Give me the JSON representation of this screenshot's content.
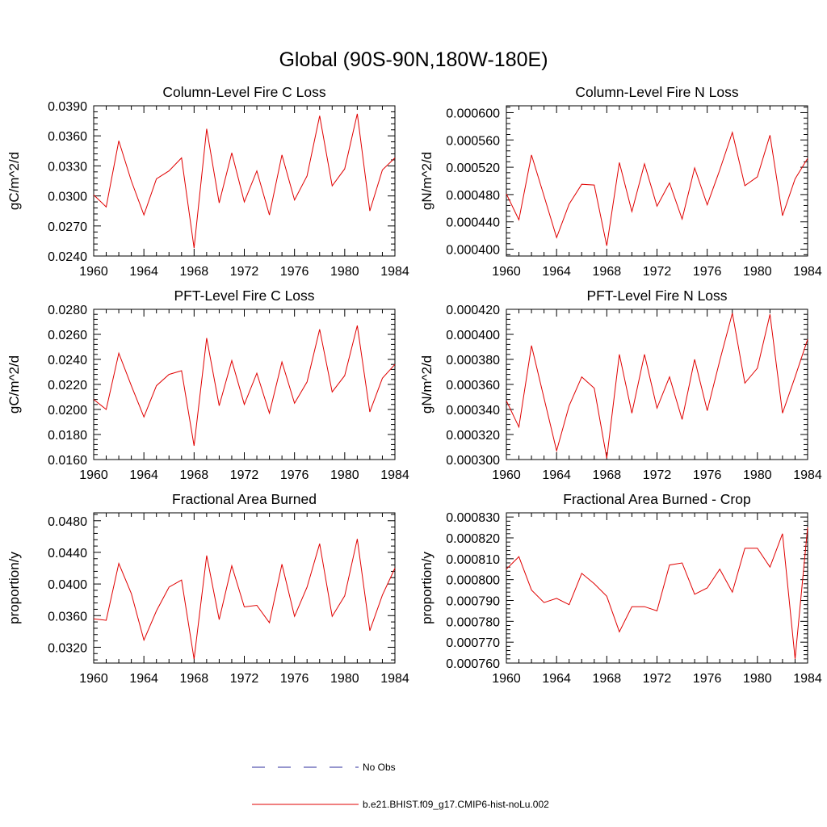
{
  "figure_title": "Global (90S-90N,180W-180E)",
  "legend": {
    "entries": [
      {
        "label": "No Obs",
        "color": "#2c2c9e",
        "style": "dashed"
      },
      {
        "label": "b.e21.BHIST.f09_g17.CMIP6-hist-noLu.002",
        "color": "#e00000",
        "style": "solid"
      }
    ]
  },
  "chart_data": [
    {
      "type": "line",
      "title": "Column-Level Fire C Loss",
      "xlabel": "",
      "ylabel": "gC/m^2/d",
      "xlim": [
        1960,
        1984
      ],
      "ylim": [
        0.024,
        0.039
      ],
      "xticks": [
        1960,
        1964,
        1968,
        1972,
        1976,
        1980,
        1984
      ],
      "yticks": [
        0.024,
        0.027,
        0.03,
        0.033,
        0.036,
        0.039
      ],
      "ytick_labels": [
        "0.0240",
        "0.0270",
        "0.0300",
        "0.0330",
        "0.0360",
        "0.0390"
      ],
      "series": [
        {
          "color": "#e00000",
          "x": [
            1960,
            1961,
            1962,
            1963,
            1964,
            1965,
            1966,
            1967,
            1968,
            1969,
            1970,
            1971,
            1972,
            1973,
            1974,
            1975,
            1976,
            1977,
            1978,
            1979,
            1980,
            1981,
            1982,
            1983,
            1984
          ],
          "y": [
            0.0301,
            0.0289,
            0.0355,
            0.0315,
            0.0281,
            0.0317,
            0.0325,
            0.0338,
            0.0248,
            0.0367,
            0.0293,
            0.0343,
            0.0294,
            0.0325,
            0.0281,
            0.0341,
            0.0296,
            0.032,
            0.038,
            0.031,
            0.0327,
            0.0382,
            0.0285,
            0.0326,
            0.0338
          ]
        }
      ]
    },
    {
      "type": "line",
      "title": "Column-Level Fire N Loss",
      "xlabel": "",
      "ylabel": "gN/m^2/d",
      "xlim": [
        1960,
        1984
      ],
      "ylim": [
        0.00039,
        0.00061
      ],
      "xticks": [
        1960,
        1964,
        1968,
        1972,
        1976,
        1980,
        1984
      ],
      "yticks": [
        0.0004,
        0.00044,
        0.00048,
        0.00052,
        0.00056,
        0.0006
      ],
      "ytick_labels": [
        "0.000400",
        "0.000440",
        "0.000480",
        "0.000520",
        "0.000560",
        "0.000600"
      ],
      "series": [
        {
          "color": "#e00000",
          "x": [
            1960,
            1961,
            1962,
            1963,
            1964,
            1965,
            1966,
            1967,
            1968,
            1969,
            1970,
            1971,
            1972,
            1973,
            1974,
            1975,
            1976,
            1977,
            1978,
            1979,
            1980,
            1981,
            1982,
            1983,
            1984
          ],
          "y": [
            0.000481,
            0.000443,
            0.000538,
            0.000478,
            0.000417,
            0.000466,
            0.000495,
            0.000494,
            0.000405,
            0.000527,
            0.000455,
            0.000525,
            0.000463,
            0.000497,
            0.000444,
            0.000519,
            0.000465,
            0.000516,
            0.000571,
            0.000493,
            0.000506,
            0.000567,
            0.000449,
            0.000503,
            0.000533
          ]
        }
      ]
    },
    {
      "type": "line",
      "title": "PFT-Level Fire C Loss",
      "xlabel": "",
      "ylabel": "gC/m^2/d",
      "xlim": [
        1960,
        1984
      ],
      "ylim": [
        0.016,
        0.028
      ],
      "xticks": [
        1960,
        1964,
        1968,
        1972,
        1976,
        1980,
        1984
      ],
      "yticks": [
        0.016,
        0.018,
        0.02,
        0.022,
        0.024,
        0.026,
        0.028
      ],
      "ytick_labels": [
        "0.0160",
        "0.0180",
        "0.0200",
        "0.0220",
        "0.0240",
        "0.0260",
        "0.0280"
      ],
      "series": [
        {
          "color": "#e00000",
          "x": [
            1960,
            1961,
            1962,
            1963,
            1964,
            1965,
            1966,
            1967,
            1968,
            1969,
            1970,
            1971,
            1972,
            1973,
            1974,
            1975,
            1976,
            1977,
            1978,
            1979,
            1980,
            1981,
            1982,
            1983,
            1984
          ],
          "y": [
            0.0208,
            0.02,
            0.0245,
            0.0219,
            0.0194,
            0.0219,
            0.0228,
            0.0231,
            0.0171,
            0.0257,
            0.0203,
            0.0239,
            0.0204,
            0.0229,
            0.0197,
            0.0238,
            0.0205,
            0.0222,
            0.0264,
            0.0214,
            0.0227,
            0.0267,
            0.0198,
            0.0225,
            0.0236
          ]
        }
      ]
    },
    {
      "type": "line",
      "title": "PFT-Level Fire N Loss",
      "xlabel": "",
      "ylabel": "gN/m^2/d",
      "xlim": [
        1960,
        1984
      ],
      "ylim": [
        0.0003,
        0.00042
      ],
      "xticks": [
        1960,
        1964,
        1968,
        1972,
        1976,
        1980,
        1984
      ],
      "yticks": [
        0.0003,
        0.00032,
        0.00034,
        0.00036,
        0.00038,
        0.0004,
        0.00042
      ],
      "ytick_labels": [
        "0.000300",
        "0.000320",
        "0.000340",
        "0.000360",
        "0.000380",
        "0.000400",
        "0.000420"
      ],
      "series": [
        {
          "color": "#e00000",
          "x": [
            1960,
            1961,
            1962,
            1963,
            1964,
            1965,
            1966,
            1967,
            1968,
            1969,
            1970,
            1971,
            1972,
            1973,
            1974,
            1975,
            1976,
            1977,
            1978,
            1979,
            1980,
            1981,
            1982,
            1983,
            1984
          ],
          "y": [
            0.000347,
            0.000326,
            0.000391,
            0.000349,
            0.000307,
            0.000343,
            0.000366,
            0.000357,
            0.000301,
            0.000384,
            0.000337,
            0.000384,
            0.000341,
            0.000366,
            0.000332,
            0.00038,
            0.000339,
            0.000379,
            0.000417,
            0.000361,
            0.000373,
            0.000416,
            0.000337,
            0.000366,
            0.000396
          ]
        }
      ]
    },
    {
      "type": "line",
      "title": "Fractional Area Burned",
      "xlabel": "",
      "ylabel": "proportion/y",
      "xlim": [
        1960,
        1984
      ],
      "ylim": [
        0.03,
        0.049
      ],
      "xticks": [
        1960,
        1964,
        1968,
        1972,
        1976,
        1980,
        1984
      ],
      "yticks": [
        0.032,
        0.036,
        0.04,
        0.044,
        0.048
      ],
      "ytick_labels": [
        "0.0320",
        "0.0360",
        "0.0400",
        "0.0440",
        "0.0480"
      ],
      "series": [
        {
          "color": "#e00000",
          "x": [
            1960,
            1961,
            1962,
            1963,
            1964,
            1965,
            1966,
            1967,
            1968,
            1969,
            1970,
            1971,
            1972,
            1973,
            1974,
            1975,
            1976,
            1977,
            1978,
            1979,
            1980,
            1981,
            1982,
            1983,
            1984
          ],
          "y": [
            0.0356,
            0.0354,
            0.0426,
            0.0388,
            0.0329,
            0.0366,
            0.0396,
            0.0405,
            0.0305,
            0.0436,
            0.0355,
            0.0423,
            0.0371,
            0.0373,
            0.0351,
            0.0425,
            0.0359,
            0.0396,
            0.0451,
            0.0359,
            0.0385,
            0.0457,
            0.0341,
            0.0386,
            0.042
          ]
        }
      ]
    },
    {
      "type": "line",
      "title": "Fractional Area Burned - Crop",
      "xlabel": "",
      "ylabel": "proportion/y",
      "xlim": [
        1960,
        1984
      ],
      "ylim": [
        0.00076,
        0.000832
      ],
      "xticks": [
        1960,
        1964,
        1968,
        1972,
        1976,
        1980,
        1984
      ],
      "yticks": [
        0.00076,
        0.00077,
        0.00078,
        0.00079,
        0.0008,
        0.00081,
        0.00082,
        0.00083
      ],
      "ytick_labels": [
        "0.000760",
        "0.000770",
        "0.000780",
        "0.000790",
        "0.000800",
        "0.000810",
        "0.000820",
        "0.000830"
      ],
      "series": [
        {
          "color": "#e00000",
          "x": [
            1960,
            1961,
            1962,
            1963,
            1964,
            1965,
            1966,
            1967,
            1968,
            1969,
            1970,
            1971,
            1972,
            1973,
            1974,
            1975,
            1976,
            1977,
            1978,
            1979,
            1980,
            1981,
            1982,
            1983,
            1984
          ],
          "y": [
            0.000805,
            0.000811,
            0.000795,
            0.000789,
            0.000791,
            0.000788,
            0.000803,
            0.000798,
            0.000792,
            0.000775,
            0.000787,
            0.000787,
            0.000785,
            0.000807,
            0.000808,
            0.000793,
            0.000796,
            0.000805,
            0.000794,
            0.000815,
            0.000815,
            0.000806,
            0.000822,
            0.000762,
            0.000825
          ]
        }
      ]
    }
  ]
}
